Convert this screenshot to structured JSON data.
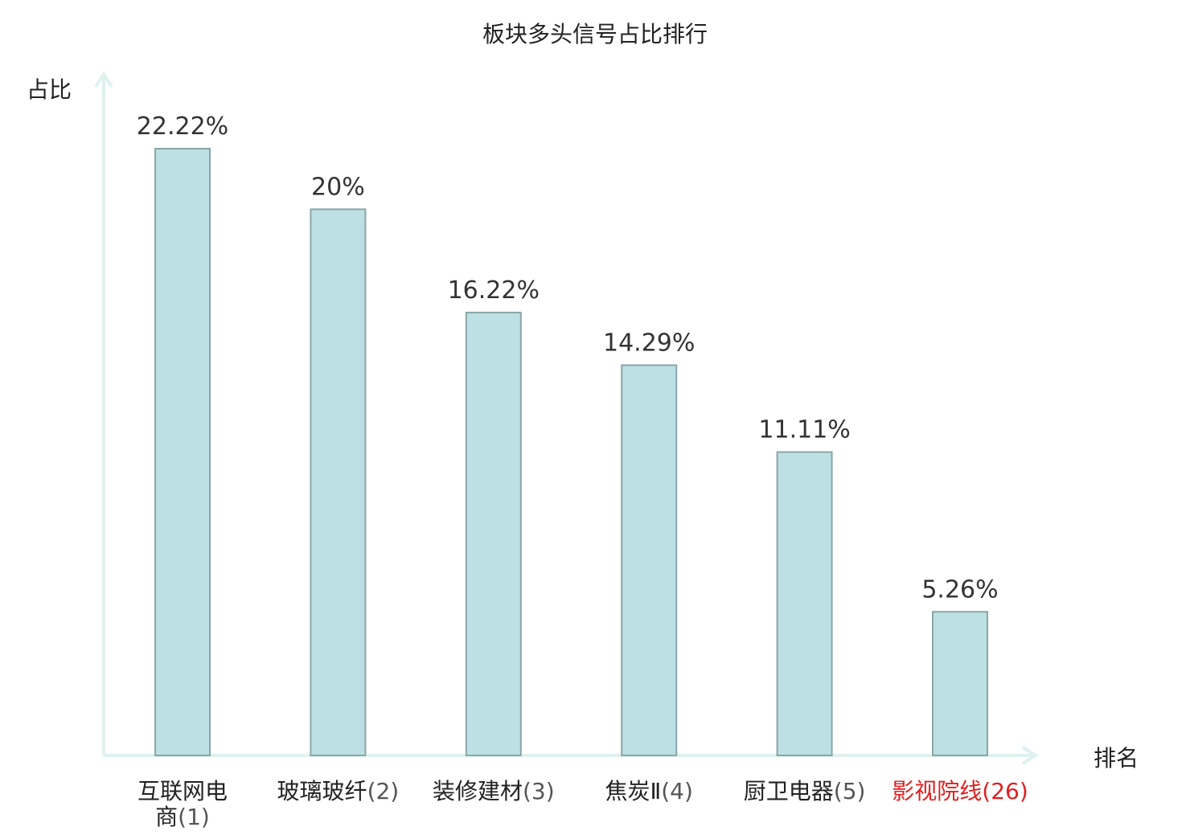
{
  "chart_data": {
    "type": "bar",
    "title": "板块多头信号占比排行",
    "xlabel": "排名",
    "ylabel": "占比",
    "categories": [
      "互联网电商(1)",
      "玻璃玻纤(2)",
      "装修建材(3)",
      "焦炭Ⅱ(4)",
      "厨卫电器(5)",
      "影视院线(26)"
    ],
    "category_parts": [
      {
        "name": "互联网电商",
        "rank": "(1)"
      },
      {
        "name": "玻璃玻纤",
        "rank": "(2)"
      },
      {
        "name": "装修建材",
        "rank": "(3)"
      },
      {
        "name": "焦炭Ⅱ",
        "rank": "(4)"
      },
      {
        "name": "厨卫电器",
        "rank": "(5)"
      },
      {
        "name": "影视院线",
        "rank": "(26)"
      }
    ],
    "values": [
      22.22,
      20,
      16.22,
      14.29,
      11.11,
      5.26
    ],
    "value_labels": [
      "22.22%",
      "20%",
      "16.22%",
      "14.29%",
      "11.11%",
      "5.26%"
    ],
    "ylim": [
      0,
      25
    ],
    "grid": false,
    "highlight_index": 5,
    "colors": {
      "bar_fill": "#bce0e3",
      "bar_stroke": "#8aa6a8",
      "axis": "#dff1ef",
      "text": "#222222",
      "value_text": "#333333",
      "rank_text": "#555555",
      "highlight_text": "#e02020"
    }
  }
}
